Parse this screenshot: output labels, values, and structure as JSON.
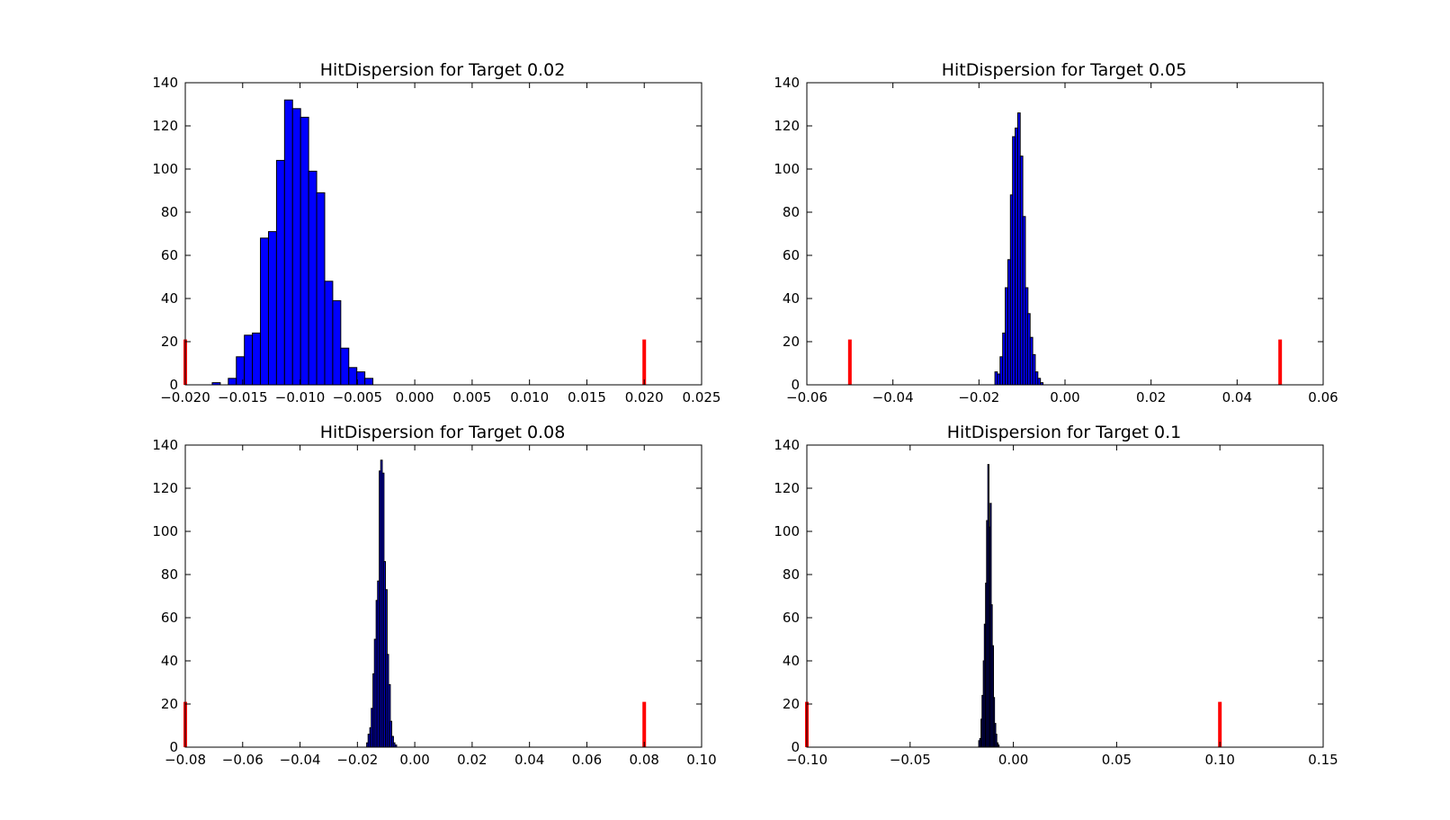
{
  "chart_data": [
    {
      "type": "bar",
      "title": "HitDispersion for Target 0.02",
      "xlabel": "",
      "ylabel": "",
      "xlim": [
        -0.02,
        0.025
      ],
      "ylim": [
        0,
        140
      ],
      "xticks": [
        "−0.020",
        "−0.015",
        "−0.010",
        "−0.005",
        "0.000",
        "0.005",
        "0.010",
        "0.015",
        "0.020",
        "0.025"
      ],
      "yticks": [
        "0",
        "20",
        "40",
        "60",
        "80",
        "100",
        "120",
        "140"
      ],
      "bar_color": "#0000ff",
      "bin_width": 0.0007,
      "bins": [
        {
          "x": -0.0173,
          "v": 1
        },
        {
          "x": -0.0166,
          "v": 0
        },
        {
          "x": -0.0159,
          "v": 3
        },
        {
          "x": -0.0152,
          "v": 13
        },
        {
          "x": -0.0145,
          "v": 23
        },
        {
          "x": -0.0138,
          "v": 24
        },
        {
          "x": -0.0131,
          "v": 68
        },
        {
          "x": -0.0124,
          "v": 71
        },
        {
          "x": -0.0117,
          "v": 104
        },
        {
          "x": -0.011,
          "v": 132
        },
        {
          "x": -0.0103,
          "v": 128
        },
        {
          "x": -0.0096,
          "v": 124
        },
        {
          "x": -0.0089,
          "v": 99
        },
        {
          "x": -0.0082,
          "v": 89
        },
        {
          "x": -0.0075,
          "v": 48
        },
        {
          "x": -0.0068,
          "v": 39
        },
        {
          "x": -0.0061,
          "v": 17
        },
        {
          "x": -0.0054,
          "v": 8
        },
        {
          "x": -0.0047,
          "v": 6
        },
        {
          "x": -0.004,
          "v": 3
        }
      ],
      "markers": [
        {
          "x": -0.02,
          "v": 21
        },
        {
          "x": 0.02,
          "v": 21
        }
      ],
      "marker_color": "#ff0000"
    },
    {
      "type": "bar",
      "title": "HitDispersion for Target 0.05",
      "xlabel": "",
      "ylabel": "",
      "xlim": [
        -0.06,
        0.06
      ],
      "ylim": [
        0,
        140
      ],
      "xticks": [
        "−0.06",
        "−0.04",
        "−0.02",
        "0.00",
        "0.02",
        "0.04",
        "0.06"
      ],
      "yticks": [
        "0",
        "20",
        "40",
        "60",
        "80",
        "100",
        "120",
        "140"
      ],
      "bar_color": "#0000ff",
      "bin_width": 0.00058,
      "bins": [
        {
          "x": -0.016,
          "v": 6
        },
        {
          "x": -0.0154,
          "v": 5
        },
        {
          "x": -0.0148,
          "v": 13
        },
        {
          "x": -0.0142,
          "v": 24
        },
        {
          "x": -0.0136,
          "v": 45
        },
        {
          "x": -0.013,
          "v": 58
        },
        {
          "x": -0.0124,
          "v": 88
        },
        {
          "x": -0.0119,
          "v": 115
        },
        {
          "x": -0.0113,
          "v": 119
        },
        {
          "x": -0.0107,
          "v": 126
        },
        {
          "x": -0.0101,
          "v": 106
        },
        {
          "x": -0.0095,
          "v": 78
        },
        {
          "x": -0.0089,
          "v": 45
        },
        {
          "x": -0.0084,
          "v": 33
        },
        {
          "x": -0.0078,
          "v": 22
        },
        {
          "x": -0.0072,
          "v": 14
        },
        {
          "x": -0.0066,
          "v": 6
        },
        {
          "x": -0.006,
          "v": 3
        },
        {
          "x": -0.0054,
          "v": 1
        }
      ],
      "markers": [
        {
          "x": -0.05,
          "v": 21
        },
        {
          "x": 0.05,
          "v": 21
        }
      ],
      "marker_color": "#ff0000"
    },
    {
      "type": "bar",
      "title": "HitDispersion for Target 0.08",
      "xlabel": "",
      "ylabel": "",
      "xlim": [
        -0.08,
        0.1
      ],
      "ylim": [
        0,
        140
      ],
      "xticks": [
        "−0.08",
        "−0.06",
        "−0.04",
        "−0.02",
        "0.00",
        "0.02",
        "0.04",
        "0.06",
        "0.08",
        "0.10"
      ],
      "yticks": [
        "0",
        "20",
        "40",
        "60",
        "80",
        "100",
        "120",
        "140"
      ],
      "bar_color": "#0000ff",
      "bin_width": 0.00055,
      "bins": [
        {
          "x": -0.0165,
          "v": 2
        },
        {
          "x": -0.016,
          "v": 6
        },
        {
          "x": -0.0154,
          "v": 9
        },
        {
          "x": -0.0149,
          "v": 18
        },
        {
          "x": -0.0143,
          "v": 34
        },
        {
          "x": -0.0138,
          "v": 50
        },
        {
          "x": -0.0132,
          "v": 68
        },
        {
          "x": -0.0127,
          "v": 77
        },
        {
          "x": -0.0121,
          "v": 128
        },
        {
          "x": -0.0116,
          "v": 133
        },
        {
          "x": -0.011,
          "v": 127
        },
        {
          "x": -0.0105,
          "v": 86
        },
        {
          "x": -0.0099,
          "v": 73
        },
        {
          "x": -0.0094,
          "v": 43
        },
        {
          "x": -0.0088,
          "v": 29
        },
        {
          "x": -0.0083,
          "v": 12
        },
        {
          "x": -0.0077,
          "v": 5
        },
        {
          "x": -0.0072,
          "v": 2
        },
        {
          "x": -0.0066,
          "v": 1
        }
      ],
      "markers": [
        {
          "x": -0.08,
          "v": 21
        },
        {
          "x": 0.08,
          "v": 21
        }
      ],
      "marker_color": "#ff0000"
    },
    {
      "type": "bar",
      "title": "HitDispersion for Target 0.1",
      "xlabel": "",
      "ylabel": "",
      "xlim": [
        -0.1,
        0.15
      ],
      "ylim": [
        0,
        140
      ],
      "xticks": [
        "−0.10",
        "−0.05",
        "0.00",
        "0.05",
        "0.10",
        "0.15"
      ],
      "yticks": [
        "0",
        "20",
        "40",
        "60",
        "80",
        "100",
        "120",
        "140"
      ],
      "bar_color": "#0000ff",
      "bin_width": 0.00055,
      "bins": [
        {
          "x": -0.0165,
          "v": 3
        },
        {
          "x": -0.016,
          "v": 4
        },
        {
          "x": -0.0154,
          "v": 13
        },
        {
          "x": -0.0149,
          "v": 24
        },
        {
          "x": -0.0143,
          "v": 40
        },
        {
          "x": -0.0138,
          "v": 57
        },
        {
          "x": -0.0132,
          "v": 76
        },
        {
          "x": -0.0127,
          "v": 105
        },
        {
          "x": -0.0121,
          "v": 131
        },
        {
          "x": -0.0116,
          "v": 102
        },
        {
          "x": -0.011,
          "v": 113
        },
        {
          "x": -0.0105,
          "v": 66
        },
        {
          "x": -0.0099,
          "v": 47
        },
        {
          "x": -0.0094,
          "v": 23
        },
        {
          "x": -0.0088,
          "v": 11
        },
        {
          "x": -0.0083,
          "v": 6
        },
        {
          "x": -0.0077,
          "v": 2
        },
        {
          "x": -0.0072,
          "v": 1
        }
      ],
      "markers": [
        {
          "x": -0.1,
          "v": 21
        },
        {
          "x": 0.1,
          "v": 21
        }
      ],
      "marker_color": "#ff0000"
    }
  ]
}
